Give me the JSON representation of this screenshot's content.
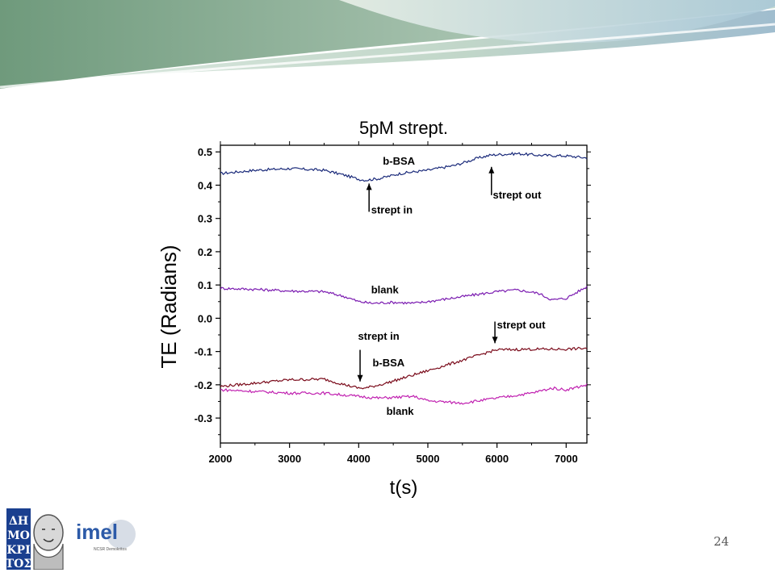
{
  "page_number": "24",
  "logos": {
    "demokritos_text": "ΔΗΜΟΚΡΙΤΟΣ",
    "imel_text": "imel",
    "imel_subtext": "NCSR Demokritos"
  },
  "colors": {
    "bbsa_top": "#1a2a7a",
    "blank_top": "#7a1ab0",
    "bbsa_bottom": "#7a0a1a",
    "blank_bottom": "#c020b0"
  },
  "chart_data": {
    "type": "line",
    "title": "5pM strept.",
    "xlabel": "t(s)",
    "ylabel": "TE (Radians)",
    "xlim": [
      2000,
      7300
    ],
    "ylim": [
      -0.375,
      0.52
    ],
    "xticks": [
      2000,
      3000,
      4000,
      5000,
      6000,
      7000
    ],
    "xtick_labels": [
      "2000",
      "3000",
      "4000",
      "5000",
      "6000",
      "7000"
    ],
    "yticks": [
      0.5,
      0.4,
      0.3,
      0.2,
      0.1,
      0.0,
      -0.1,
      -0.2,
      -0.3
    ],
    "ytick_labels": [
      "0.5",
      "0.4",
      "0.3",
      "0.2",
      "0.1",
      "0.0",
      "-0.1",
      "-0.2",
      "-0.3"
    ],
    "series": [
      {
        "name": "b-BSA",
        "color": "#1a2a7a",
        "x": [
          2000,
          2500,
          3000,
          3500,
          3800,
          4000,
          4100,
          4300,
          4600,
          5000,
          5400,
          5700,
          5900,
          6000,
          6300,
          6600,
          7000,
          7300
        ],
        "y": [
          0.435,
          0.445,
          0.45,
          0.445,
          0.43,
          0.418,
          0.415,
          0.42,
          0.435,
          0.445,
          0.46,
          0.48,
          0.49,
          0.492,
          0.495,
          0.49,
          0.488,
          0.482
        ]
      },
      {
        "name": "blank",
        "color": "#7a1ab0",
        "x": [
          2000,
          2500,
          3000,
          3500,
          3800,
          4000,
          4200,
          4500,
          4800,
          5000,
          5500,
          6000,
          6300,
          6600,
          6800,
          7000,
          7300
        ],
        "y": [
          0.09,
          0.087,
          0.082,
          0.08,
          0.065,
          0.05,
          0.045,
          0.048,
          0.045,
          0.05,
          0.065,
          0.08,
          0.085,
          0.075,
          0.055,
          0.06,
          0.095
        ]
      },
      {
        "name": "b-BSA",
        "color": "#7a0a1a",
        "x": [
          2000,
          2500,
          3000,
          3500,
          3800,
          4000,
          4100,
          4400,
          4800,
          5200,
          5600,
          5900,
          6000,
          6500,
          7000,
          7300
        ],
        "y": [
          -0.205,
          -0.195,
          -0.185,
          -0.183,
          -0.2,
          -0.21,
          -0.21,
          -0.195,
          -0.17,
          -0.145,
          -0.12,
          -0.1,
          -0.095,
          -0.093,
          -0.093,
          -0.09
        ]
      },
      {
        "name": "blank",
        "color": "#c020b0",
        "x": [
          2000,
          2500,
          3000,
          3500,
          4000,
          4300,
          4800,
          5000,
          5500,
          6000,
          6500,
          6800,
          7000,
          7300
        ],
        "y": [
          -0.215,
          -0.22,
          -0.225,
          -0.225,
          -0.235,
          -0.24,
          -0.235,
          -0.248,
          -0.255,
          -0.24,
          -0.225,
          -0.21,
          -0.215,
          -0.2
        ]
      }
    ],
    "annotations": [
      {
        "text": "b-BSA",
        "x": 4350,
        "y": 0.462
      },
      {
        "text": "strept in",
        "x": 4180,
        "y": 0.315,
        "arrow_from": [
          4150,
          0.32
        ],
        "arrow_to": [
          4150,
          0.405
        ],
        "arrow_direction": "up"
      },
      {
        "text": "strept out",
        "x": 5940,
        "y": 0.36,
        "arrow_from": [
          5920,
          0.37
        ],
        "arrow_to": [
          5920,
          0.455
        ],
        "arrow_direction": "up"
      },
      {
        "text": "blank",
        "x": 4180,
        "y": 0.075
      },
      {
        "text": "strept out",
        "x": 6000,
        "y": -0.03,
        "arrow_from": [
          5970,
          -0.01
        ],
        "arrow_to": [
          5970,
          -0.075
        ],
        "arrow_direction": "down"
      },
      {
        "text": "strept in",
        "x": 3990,
        "y": -0.065,
        "arrow_from": [
          4020,
          -0.095
        ],
        "arrow_to": [
          4020,
          -0.19
        ],
        "arrow_direction": "down"
      },
      {
        "text": "b-BSA",
        "x": 4200,
        "y": -0.145
      },
      {
        "text": "blank",
        "x": 4400,
        "y": -0.29
      }
    ],
    "grid": false,
    "legend": "none"
  }
}
